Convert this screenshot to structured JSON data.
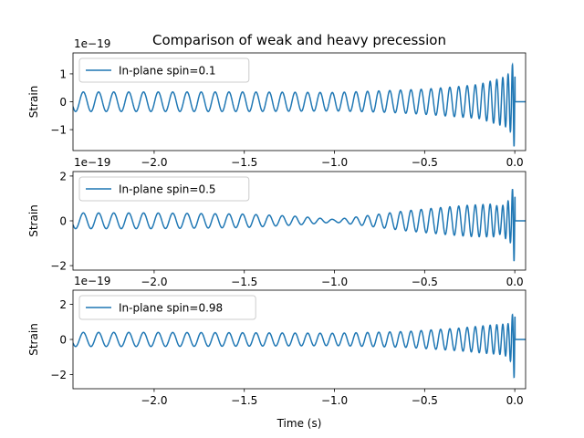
{
  "figure": {
    "title": "Comparison of weak and heavy precession",
    "xlabel": "Time (s)"
  },
  "chart_data": [
    {
      "type": "line",
      "title": "Comparison of weak and heavy precession",
      "xlabel": "",
      "ylabel": "Strain",
      "scale_label": "1e−19",
      "xlim": [
        -2.45,
        0.06
      ],
      "ylim": [
        -1.75,
        1.75
      ],
      "xticks": [
        -2.0,
        -1.5,
        -1.0,
        -0.5,
        0.0
      ],
      "xtick_labels": [
        "−2.0",
        "−1.5",
        "−1.0",
        "−0.5",
        "0.0"
      ],
      "yticks": [
        -1,
        0,
        1
      ],
      "ytick_labels": [
        "−1",
        "0",
        "1"
      ],
      "legend": "top-left",
      "color": "#1f77b4",
      "series": [
        {
          "name": "In-plane spin=0.1",
          "envelope": {
            "t": [
              -2.45,
              -2.0,
              -1.5,
              -1.0,
              -0.7,
              -0.5,
              -0.3,
              -0.2,
              -0.1,
              -0.05,
              -0.02,
              -0.005,
              0.0,
              0.003,
              0.06
            ],
            "upper": [
              0.35,
              0.35,
              0.35,
              0.33,
              0.4,
              0.45,
              0.55,
              0.62,
              0.8,
              0.9,
              1.1,
              1.6,
              1.6,
              0.0,
              0.0
            ],
            "lower": [
              -0.35,
              -0.35,
              -0.35,
              -0.33,
              -0.38,
              -0.45,
              -0.55,
              -0.6,
              -0.8,
              -0.9,
              -1.1,
              -1.6,
              -1.6,
              0.0,
              0.0
            ]
          }
        }
      ]
    },
    {
      "type": "line",
      "xlabel": "",
      "ylabel": "Strain",
      "scale_label": "1e−19",
      "xlim": [
        -2.45,
        0.06
      ],
      "ylim": [
        -2.2,
        2.2
      ],
      "xticks": [
        -2.0,
        -1.5,
        -1.0,
        -0.5,
        0.0
      ],
      "xtick_labels": [
        "−2.0",
        "−1.5",
        "−1.0",
        "−0.5",
        "0.0"
      ],
      "yticks": [
        -2,
        0,
        2
      ],
      "ytick_labels": [
        "−2",
        "0",
        "2"
      ],
      "legend": "top-left",
      "color": "#1f77b4",
      "series": [
        {
          "name": "In-plane spin=0.5",
          "envelope": {
            "t": [
              -2.45,
              -2.0,
              -1.5,
              -1.2,
              -1.0,
              -0.85,
              -0.6,
              -0.4,
              -0.25,
              -0.12,
              -0.08,
              -0.02,
              -0.005,
              0.0,
              0.003,
              0.06
            ],
            "upper": [
              0.35,
              0.35,
              0.3,
              0.2,
              0.06,
              0.2,
              0.45,
              0.6,
              0.7,
              0.75,
              0.6,
              1.0,
              1.9,
              1.9,
              0.0,
              0.0
            ],
            "lower": [
              -0.35,
              -0.35,
              -0.3,
              -0.18,
              -0.06,
              -0.2,
              -0.45,
              -0.6,
              -0.7,
              -0.72,
              -0.6,
              -1.0,
              -1.8,
              -1.8,
              0.0,
              0.0
            ]
          }
        }
      ]
    },
    {
      "type": "line",
      "xlabel": "Time (s)",
      "ylabel": "Strain",
      "scale_label": "1e−19",
      "xlim": [
        -2.45,
        0.06
      ],
      "ylim": [
        -2.8,
        2.8
      ],
      "xticks": [
        -2.0,
        -1.5,
        -1.0,
        -0.5,
        0.0
      ],
      "xtick_labels": [
        "−2.0",
        "−1.5",
        "−1.0",
        "−0.5",
        "0.0"
      ],
      "yticks": [
        -2,
        0,
        2
      ],
      "ytick_labels": [
        "−2",
        "0",
        "2"
      ],
      "legend": "top-left",
      "color": "#1f77b4",
      "series": [
        {
          "name": "In-plane spin=0.98",
          "envelope": {
            "t": [
              -2.45,
              -2.0,
              -1.5,
              -1.0,
              -0.6,
              -0.3,
              -0.15,
              -0.08,
              -0.03,
              -0.01,
              0.0,
              0.003,
              0.06
            ],
            "upper": [
              0.4,
              0.4,
              0.38,
              0.35,
              0.45,
              0.65,
              0.8,
              0.85,
              0.9,
              1.5,
              2.3,
              0.0,
              0.0
            ],
            "lower": [
              -0.4,
              -0.4,
              -0.38,
              -0.35,
              -0.45,
              -0.65,
              -0.8,
              -0.85,
              -1.0,
              -1.8,
              -2.4,
              0.0,
              0.0
            ]
          }
        }
      ]
    }
  ]
}
